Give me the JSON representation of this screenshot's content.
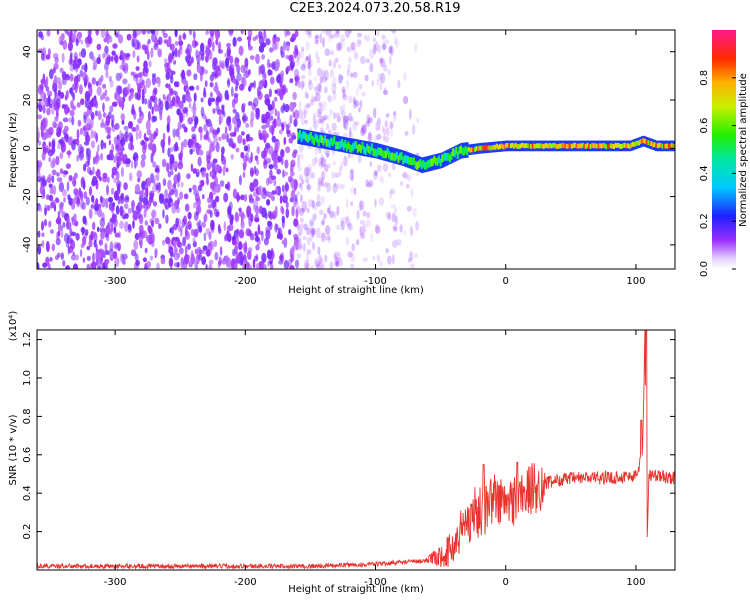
{
  "title": "C2E3.2024.073.20.58.R19",
  "colors": {
    "snr_line": "#e8322c",
    "speckle": "#6a1fe0",
    "axis": "#000000"
  },
  "chart_data": [
    {
      "type": "heatmap",
      "name": "spectrogram",
      "xlabel": "Height of straight line (km)",
      "ylabel": "Frequency (Hz)",
      "xlim": [
        -360,
        130
      ],
      "ylim": [
        -50,
        49
      ],
      "x_ticks": [
        -300,
        -200,
        -100,
        0,
        100
      ],
      "x_tick_labels": [
        "-300",
        "-200",
        "-100",
        "0",
        "100"
      ],
      "y_ticks": [
        -40,
        -20,
        0,
        20,
        40
      ],
      "y_tick_labels": [
        "-40",
        "-20",
        "0",
        "20",
        "40"
      ],
      "colorbar": {
        "label": "Normalized spectral amplitude",
        "range": [
          0,
          1
        ],
        "ticks": [
          0.0,
          0.2,
          0.4,
          0.6,
          0.8
        ],
        "tick_labels": [
          "0.0",
          "0.2",
          "0.4",
          "0.6",
          "0.8"
        ]
      },
      "noise_region": {
        "x_range": [
          -360,
          -160
        ],
        "fade_out_range": [
          -160,
          -65
        ]
      },
      "signal_ridge": {
        "x": [
          -160,
          -140,
          -120,
          -100,
          -80,
          -65,
          -50,
          -35,
          -20,
          0,
          20,
          40,
          60,
          80,
          95,
          105,
          115,
          130
        ],
        "y": [
          5,
          3,
          1,
          -1,
          -4,
          -7,
          -5,
          -1,
          0,
          1,
          1,
          1,
          1,
          1,
          1,
          3,
          1,
          1
        ],
        "peak_amplitude": 0.9
      }
    },
    {
      "type": "line",
      "name": "snr",
      "xlabel": "Height of straight line (km)",
      "ylabel": "SNR (10 * v/v)",
      "y_multiplier_label": "(x10⁴)",
      "xlim": [
        -360,
        130
      ],
      "ylim": [
        0,
        1.25
      ],
      "x_ticks": [
        -300,
        -200,
        -100,
        0,
        100
      ],
      "x_tick_labels": [
        "-300",
        "-200",
        "-100",
        "0",
        "100"
      ],
      "y_ticks": [
        0.2,
        0.4,
        0.6,
        0.8,
        1.0,
        1.2
      ],
      "y_tick_labels": [
        "0.2",
        "0.4",
        "0.6",
        "0.8",
        "1.0",
        "1.2"
      ],
      "series": [
        {
          "x": [
            -360,
            -300,
            -200,
            -150,
            -100,
            -80,
            -60,
            -50,
            -40,
            -35,
            -30,
            -25,
            -20,
            -15,
            -10,
            -5,
            0,
            10,
            20,
            30,
            40,
            60,
            80,
            100,
            105,
            107,
            108,
            110,
            115,
            130
          ],
          "y": [
            0.02,
            0.02,
            0.02,
            0.02,
            0.03,
            0.04,
            0.05,
            0.07,
            0.12,
            0.2,
            0.25,
            0.3,
            0.3,
            0.33,
            0.38,
            0.36,
            0.34,
            0.38,
            0.42,
            0.45,
            0.47,
            0.48,
            0.48,
            0.49,
            0.6,
            1.25,
            0.05,
            0.5,
            0.49,
            0.48
          ],
          "spikes": [
            {
              "x": -17,
              "y": 0.55
            },
            {
              "x": 9,
              "y": 0.56
            },
            {
              "x": 104,
              "y": 0.78
            },
            {
              "x": 108,
              "y": 1.25
            }
          ]
        }
      ]
    }
  ]
}
